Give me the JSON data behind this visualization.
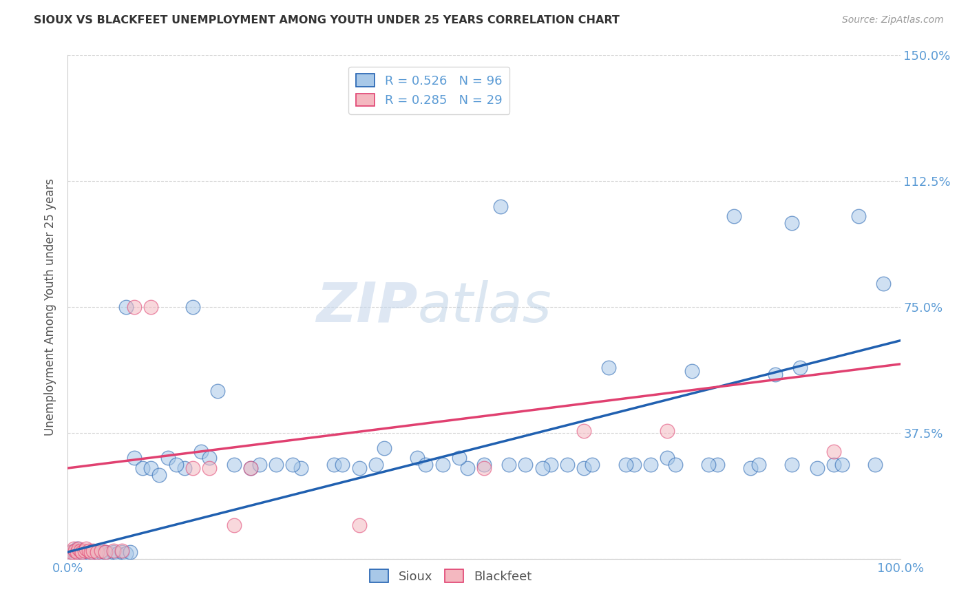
{
  "title": "SIOUX VS BLACKFEET UNEMPLOYMENT AMONG YOUTH UNDER 25 YEARS CORRELATION CHART",
  "source": "Source: ZipAtlas.com",
  "ylabel": "Unemployment Among Youth under 25 years",
  "sioux_R": 0.526,
  "sioux_N": 96,
  "blackfeet_R": 0.285,
  "blackfeet_N": 29,
  "sioux_color": "#a8c8e8",
  "blackfeet_color": "#f4b8c0",
  "sioux_line_color": "#2060b0",
  "blackfeet_line_color": "#e04070",
  "legend_labels": [
    "Sioux",
    "Blackfeet"
  ],
  "watermark_zip": "ZIP",
  "watermark_atlas": "atlas",
  "xlim": [
    0.0,
    1.0
  ],
  "ylim": [
    0.0,
    1.5
  ],
  "xtick_positions": [
    0.0,
    0.25,
    0.5,
    0.75,
    1.0
  ],
  "xtick_labels": [
    "0.0%",
    "",
    "",
    "",
    "100.0%"
  ],
  "ytick_vals": [
    0.0,
    0.375,
    0.75,
    1.125,
    1.5
  ],
  "ytick_labels": [
    "",
    "37.5%",
    "75.0%",
    "112.5%",
    "150.0%"
  ],
  "title_color": "#333333",
  "axis_label_color": "#555555",
  "tick_label_color": "#5b9bd5",
  "grid_color": "#cccccc",
  "sioux_x": [
    0.003,
    0.004,
    0.005,
    0.006,
    0.007,
    0.008,
    0.009,
    0.01,
    0.01,
    0.011,
    0.012,
    0.013,
    0.014,
    0.015,
    0.016,
    0.017,
    0.018,
    0.019,
    0.02,
    0.021,
    0.022,
    0.023,
    0.025,
    0.027,
    0.03,
    0.032,
    0.035,
    0.038,
    0.04,
    0.042,
    0.045,
    0.05,
    0.055,
    0.06,
    0.065,
    0.07,
    0.075,
    0.08,
    0.09,
    0.1,
    0.11,
    0.12,
    0.14,
    0.16,
    0.18,
    0.2,
    0.22,
    0.25,
    0.28,
    0.32,
    0.35,
    0.38,
    0.42,
    0.45,
    0.48,
    0.5,
    0.52,
    0.55,
    0.58,
    0.6,
    0.62,
    0.65,
    0.68,
    0.7,
    0.72,
    0.75,
    0.78,
    0.8,
    0.82,
    0.85,
    0.87,
    0.88,
    0.9,
    0.92,
    0.93,
    0.95,
    0.97,
    0.98,
    0.13,
    0.17,
    0.23,
    0.27,
    0.33,
    0.37,
    0.43,
    0.47,
    0.53,
    0.57,
    0.63,
    0.67,
    0.73,
    0.77,
    0.83,
    0.87,
    0.15,
    0.07
  ],
  "sioux_y": [
    0.01,
    0.02,
    0.015,
    0.01,
    0.02,
    0.025,
    0.015,
    0.01,
    0.02,
    0.03,
    0.01,
    0.015,
    0.02,
    0.01,
    0.015,
    0.02,
    0.01,
    0.015,
    0.02,
    0.01,
    0.015,
    0.01,
    0.02,
    0.015,
    0.02,
    0.015,
    0.02,
    0.015,
    0.02,
    0.015,
    0.02,
    0.015,
    0.02,
    0.015,
    0.02,
    0.015,
    0.02,
    0.3,
    0.27,
    0.27,
    0.25,
    0.3,
    0.27,
    0.32,
    0.5,
    0.28,
    0.27,
    0.28,
    0.27,
    0.28,
    0.27,
    0.33,
    0.3,
    0.28,
    0.27,
    0.28,
    1.05,
    0.28,
    0.28,
    0.28,
    0.27,
    0.57,
    0.28,
    0.28,
    0.3,
    0.56,
    0.28,
    1.02,
    0.27,
    0.55,
    1.0,
    0.57,
    0.27,
    0.28,
    0.28,
    1.02,
    0.28,
    0.82,
    0.28,
    0.3,
    0.28,
    0.28,
    0.28,
    0.28,
    0.28,
    0.3,
    0.28,
    0.27,
    0.28,
    0.28,
    0.28,
    0.28,
    0.28,
    0.28,
    0.75,
    0.75
  ],
  "blackfeet_x": [
    0.003,
    0.005,
    0.007,
    0.009,
    0.011,
    0.013,
    0.015,
    0.017,
    0.02,
    0.022,
    0.025,
    0.028,
    0.03,
    0.035,
    0.04,
    0.045,
    0.055,
    0.065,
    0.08,
    0.1,
    0.15,
    0.17,
    0.2,
    0.22,
    0.35,
    0.5,
    0.62,
    0.72,
    0.92
  ],
  "blackfeet_y": [
    0.01,
    0.02,
    0.03,
    0.025,
    0.02,
    0.03,
    0.025,
    0.02,
    0.025,
    0.03,
    0.025,
    0.02,
    0.025,
    0.02,
    0.025,
    0.02,
    0.025,
    0.025,
    0.75,
    0.75,
    0.27,
    0.27,
    0.1,
    0.27,
    0.1,
    0.27,
    0.38,
    0.38,
    0.32
  ]
}
